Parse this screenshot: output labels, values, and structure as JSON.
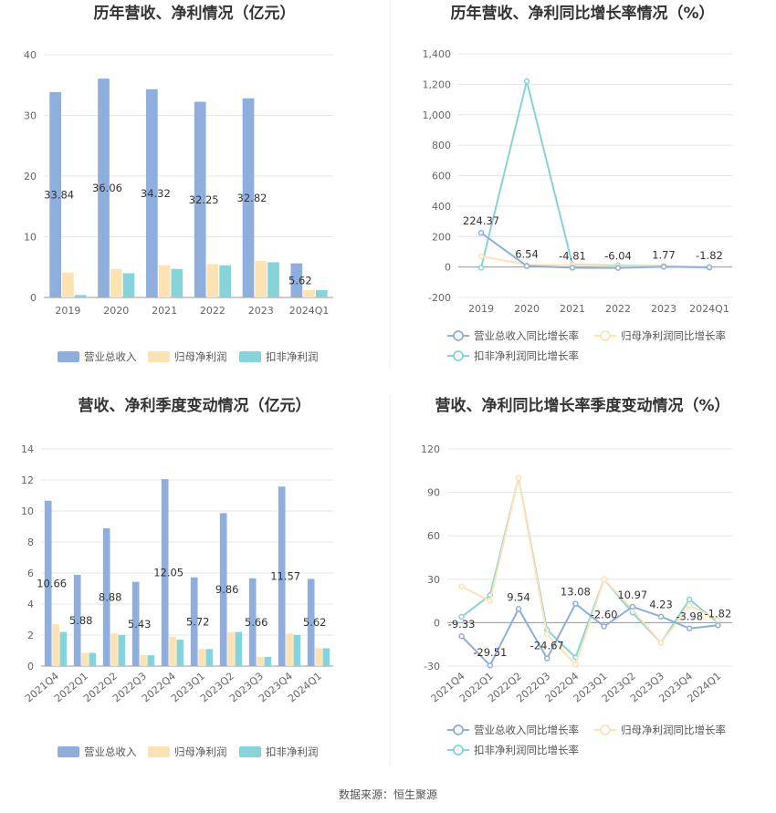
{
  "source": "数据来源：恒生聚源",
  "chart_data": [
    {
      "id": "annual-bar",
      "type": "bar",
      "title": "历年营收、净利情况（亿元）",
      "categories": [
        "2019",
        "2020",
        "2021",
        "2022",
        "2023",
        "2024Q1"
      ],
      "ylim": [
        0,
        40
      ],
      "yticks": [
        0,
        10,
        20,
        30,
        40
      ],
      "grid": true,
      "legend_position": "bottom",
      "series": [
        {
          "name": "营业总收入",
          "color": "#8eaedd",
          "values": [
            33.84,
            36.06,
            34.32,
            32.25,
            32.82,
            5.62
          ],
          "labels": [
            "33.84",
            "36.06",
            "34.32",
            "32.25",
            "32.82",
            "5.62"
          ]
        },
        {
          "name": "归母净利润",
          "color": "#fde2b4",
          "values": [
            4.1,
            4.7,
            5.3,
            5.5,
            6.0,
            1.2
          ]
        },
        {
          "name": "扣非净利润",
          "color": "#86d3d9",
          "values": [
            0.4,
            4.0,
            4.7,
            5.3,
            5.8,
            1.2
          ]
        }
      ]
    },
    {
      "id": "annual-line",
      "type": "line",
      "title": "历年营收、净利同比增长率情况（%）",
      "categories": [
        "2019",
        "2020",
        "2021",
        "2022",
        "2023",
        "2024Q1"
      ],
      "ylim": [
        -200,
        1400
      ],
      "yticks": [
        -200,
        0,
        200,
        400,
        600,
        800,
        1000,
        1200,
        1400
      ],
      "ytick_labels": [
        "-200",
        "0",
        "200",
        "400",
        "600",
        "800",
        "1,000",
        "1,200",
        "1,400"
      ],
      "grid": true,
      "legend_position": "bottom",
      "series": [
        {
          "name": "营业总收入同比增长率",
          "color": "#8eaedd",
          "values": [
            224.37,
            6.54,
            -4.81,
            -6.04,
            1.77,
            -1.82
          ],
          "labels": [
            "224.37",
            "6.54",
            "-4.81",
            "-6.04",
            "1.77",
            "-1.82"
          ]
        },
        {
          "name": "归母净利润同比增长率",
          "color": "#fde2b4",
          "values": [
            70,
            15,
            12,
            5,
            8,
            -5
          ]
        },
        {
          "name": "扣非净利润同比增长率",
          "color": "#86d3d9",
          "values": [
            -5,
            1220,
            15,
            10,
            8,
            -5
          ]
        }
      ]
    },
    {
      "id": "quarter-bar",
      "type": "bar",
      "title": "营收、净利季度变动情况（亿元）",
      "categories": [
        "2021Q4",
        "2022Q1",
        "2022Q2",
        "2022Q3",
        "2022Q4",
        "2023Q1",
        "2023Q2",
        "2023Q3",
        "2023Q4",
        "2024Q1"
      ],
      "ylim": [
        0,
        14
      ],
      "yticks": [
        0,
        2,
        4,
        6,
        8,
        10,
        12,
        14
      ],
      "grid": true,
      "legend_position": "bottom",
      "series": [
        {
          "name": "营业总收入",
          "color": "#8eaedd",
          "values": [
            10.66,
            5.88,
            8.88,
            5.43,
            12.05,
            5.72,
            9.86,
            5.66,
            11.57,
            5.62
          ],
          "labels": [
            "10.66",
            "5.88",
            "8.88",
            "5.43",
            "12.05",
            "5.72",
            "9.86",
            "5.66",
            "11.57",
            "5.62"
          ]
        },
        {
          "name": "归母净利润",
          "color": "#fde2b4",
          "values": [
            2.7,
            0.85,
            2.1,
            0.7,
            1.9,
            1.1,
            2.2,
            0.6,
            2.1,
            1.15
          ]
        },
        {
          "name": "扣非净利润",
          "color": "#86d3d9",
          "values": [
            2.2,
            0.85,
            2.0,
            0.7,
            1.7,
            1.1,
            2.2,
            0.6,
            2.0,
            1.15
          ]
        }
      ]
    },
    {
      "id": "quarter-line",
      "type": "line",
      "title": "营收、净利同比增长率季度变动情况（%）",
      "categories": [
        "2021Q4",
        "2022Q1",
        "2022Q2",
        "2022Q3",
        "2022Q4",
        "2023Q1",
        "2023Q2",
        "2023Q3",
        "2023Q4",
        "2024Q1"
      ],
      "ylim": [
        -30,
        120
      ],
      "yticks": [
        -30,
        0,
        30,
        60,
        90,
        120
      ],
      "grid": true,
      "legend_position": "bottom",
      "series": [
        {
          "name": "营业总收入同比增长率",
          "color": "#8eaedd",
          "values": [
            -9.33,
            -29.51,
            9.54,
            -24.67,
            13.08,
            -2.6,
            10.97,
            4.23,
            -3.98,
            -1.82
          ],
          "labels": [
            "-9.33",
            "-29.51",
            "9.54",
            "-24.67",
            "13.08",
            "-2.60",
            "10.97",
            "4.23",
            "-3.98",
            "-1.82"
          ]
        },
        {
          "name": "归母净利润同比增长率",
          "color": "#fde2b4",
          "values": [
            25,
            15,
            100,
            -8,
            -29,
            30,
            9,
            -14,
            12,
            2
          ]
        },
        {
          "name": "扣非净利润同比增长率",
          "color": "#86d3d9",
          "values": [
            4,
            19,
            100,
            -5,
            -24,
            30,
            7,
            -14,
            16,
            0
          ]
        }
      ]
    }
  ]
}
